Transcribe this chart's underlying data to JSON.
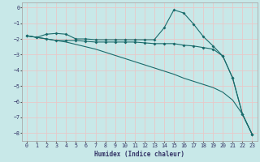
{
  "xlabel": "Humidex (Indice chaleur)",
  "ylabel": "",
  "bg_color": "#c8e8e8",
  "grid_color": "#e8c8c8",
  "line_color": "#1a6b6b",
  "xlim": [
    -0.5,
    23.5
  ],
  "ylim": [
    -8.5,
    0.3
  ],
  "xticks": [
    0,
    1,
    2,
    3,
    4,
    5,
    6,
    7,
    8,
    9,
    10,
    11,
    12,
    13,
    14,
    15,
    16,
    17,
    18,
    19,
    20,
    21,
    22,
    23
  ],
  "yticks": [
    0,
    -1,
    -2,
    -3,
    -4,
    -5,
    -6,
    -7,
    -8
  ],
  "line1_x": [
    0,
    1,
    2,
    3,
    4,
    5,
    6,
    7,
    8,
    9,
    10,
    11,
    12,
    13,
    14,
    15,
    16,
    17,
    18,
    19,
    20,
    21,
    22,
    23
  ],
  "line1_y": [
    -1.8,
    -1.9,
    -1.7,
    -1.65,
    -1.7,
    -2.0,
    -2.0,
    -2.05,
    -2.05,
    -2.05,
    -2.05,
    -2.05,
    -2.05,
    -2.05,
    -1.3,
    -0.15,
    -0.35,
    -1.05,
    -1.85,
    -2.45,
    -3.1,
    -4.5,
    -6.8,
    -8.1
  ],
  "line2_x": [
    0,
    1,
    2,
    3,
    4,
    5,
    6,
    7,
    8,
    9,
    10,
    11,
    12,
    13,
    14,
    15,
    16,
    17,
    18,
    19,
    20,
    21,
    22,
    23
  ],
  "line2_y": [
    -1.8,
    -1.9,
    -2.0,
    -2.1,
    -2.1,
    -2.1,
    -2.15,
    -2.2,
    -2.2,
    -2.2,
    -2.2,
    -2.2,
    -2.25,
    -2.3,
    -2.3,
    -2.3,
    -2.4,
    -2.45,
    -2.55,
    -2.65,
    -3.1,
    -4.5,
    -6.8,
    -8.1
  ],
  "line3_x": [
    0,
    1,
    2,
    3,
    4,
    5,
    6,
    7,
    8,
    9,
    10,
    11,
    12,
    13,
    14,
    15,
    16,
    17,
    18,
    19,
    20,
    21,
    22,
    23
  ],
  "line3_y": [
    -1.8,
    -1.9,
    -2.0,
    -2.1,
    -2.2,
    -2.35,
    -2.5,
    -2.65,
    -2.85,
    -3.05,
    -3.25,
    -3.45,
    -3.65,
    -3.85,
    -4.05,
    -4.25,
    -4.5,
    -4.7,
    -4.9,
    -5.1,
    -5.4,
    -5.9,
    -6.8,
    -8.1
  ]
}
